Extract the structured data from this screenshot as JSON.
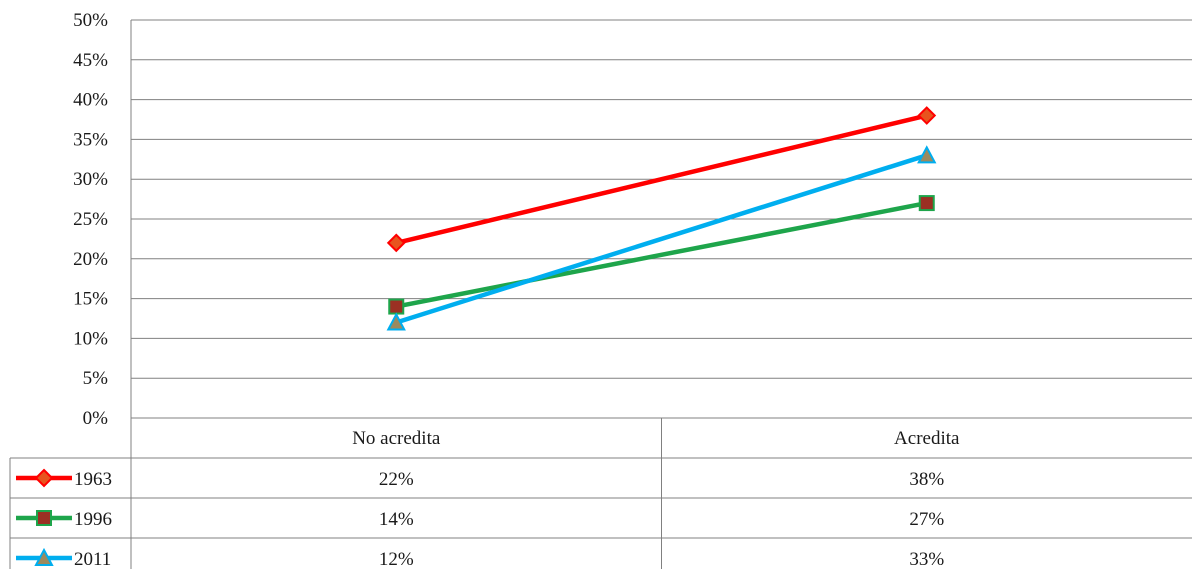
{
  "chart_data": {
    "type": "line",
    "categories": [
      "No acredita",
      "Acredita"
    ],
    "series": [
      {
        "name": "1963",
        "values": [
          22,
          38
        ],
        "value_labels": [
          "22%",
          "38%"
        ],
        "color": "#ff0000",
        "marker": "diamond",
        "marker_fill": "#e8541e",
        "marker_stroke": "#ff0000"
      },
      {
        "name": "1996",
        "values": [
          14,
          27
        ],
        "value_labels": [
          "14%",
          "27%"
        ],
        "color": "#1ea54b",
        "marker": "square",
        "marker_fill": "#9b3023",
        "marker_stroke": "#1ea54b"
      },
      {
        "name": "2011",
        "values": [
          12,
          33
        ],
        "value_labels": [
          "12%",
          "33%"
        ],
        "color": "#00aeef",
        "marker": "triangle",
        "marker_fill": "#9b8a5f",
        "marker_stroke": "#00aeef"
      }
    ],
    "ylim": [
      0,
      50
    ],
    "yticks": [
      0,
      5,
      10,
      15,
      20,
      25,
      30,
      35,
      40,
      45,
      50
    ],
    "ytick_labels": [
      "0%",
      "5%",
      "10%",
      "15%",
      "20%",
      "25%",
      "30%",
      "35%",
      "40%",
      "45%",
      "50%"
    ],
    "grid": true,
    "legend": "data table below plot",
    "xlabel": "",
    "ylabel": "",
    "title": ""
  },
  "colors": {
    "grid": "#808080",
    "text": "#1a1a1a"
  }
}
